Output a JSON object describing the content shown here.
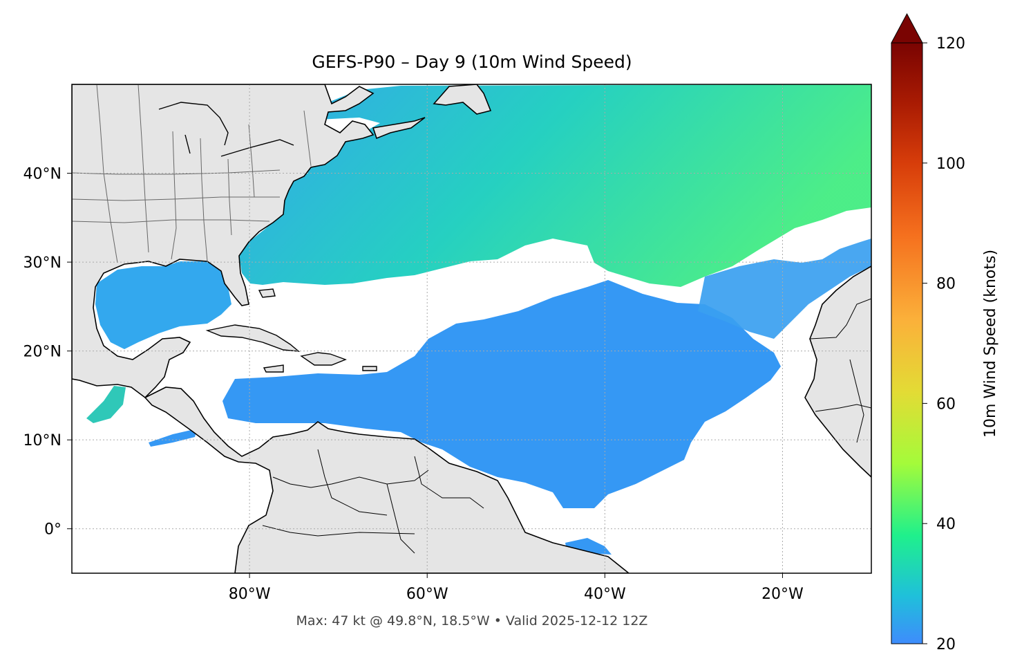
{
  "title": "GEFS-P90 – Day 9 (10m Wind Speed)",
  "footnote": "Max: 47 kt @ 49.8°N, 18.5°W • Valid 2025-12-12 12Z",
  "axes": {
    "lon_range": [
      -100,
      -10
    ],
    "lat_range": [
      -5,
      50
    ],
    "x_ticks": [
      {
        "value": -80,
        "label": "80°W"
      },
      {
        "value": -60,
        "label": "60°W"
      },
      {
        "value": -40,
        "label": "40°W"
      },
      {
        "value": -20,
        "label": "20°W"
      }
    ],
    "y_ticks": [
      {
        "value": 0,
        "label": "0°"
      },
      {
        "value": 10,
        "label": "10°N"
      },
      {
        "value": 20,
        "label": "20°N"
      },
      {
        "value": 30,
        "label": "30°N"
      },
      {
        "value": 40,
        "label": "40°N"
      }
    ],
    "grid": "dotted"
  },
  "colorbar": {
    "label": "10m Wind Speed (knots)",
    "range": [
      20,
      120
    ],
    "extend": "max",
    "ticks": [
      {
        "value": 20,
        "label": "20"
      },
      {
        "value": 40,
        "label": "40"
      },
      {
        "value": 60,
        "label": "60"
      },
      {
        "value": 80,
        "label": "80"
      },
      {
        "value": 100,
        "label": "100"
      },
      {
        "value": 120,
        "label": "120"
      }
    ],
    "stops": [
      {
        "value": 20,
        "color": "#3e8cfc"
      },
      {
        "value": 28,
        "color": "#1fc0da"
      },
      {
        "value": 38,
        "color": "#1ff08c"
      },
      {
        "value": 50,
        "color": "#a4fb3a"
      },
      {
        "value": 62,
        "color": "#e3db35"
      },
      {
        "value": 74,
        "color": "#fbb03a"
      },
      {
        "value": 88,
        "color": "#f5701e"
      },
      {
        "value": 100,
        "color": "#d73d0a"
      },
      {
        "value": 110,
        "color": "#a91b03"
      },
      {
        "value": 120,
        "color": "#7a0402"
      }
    ]
  },
  "colors": {
    "land": "#e5e5e5",
    "coast": "#000000",
    "borders": "#666666",
    "ocean_background": "#ffffff"
  }
}
